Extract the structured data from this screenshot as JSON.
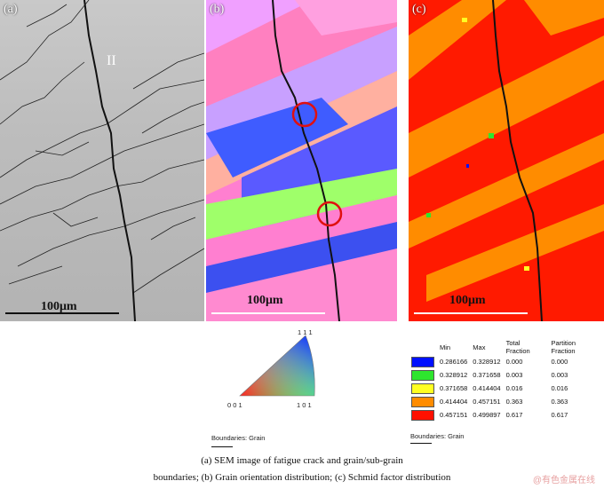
{
  "panels": {
    "a": {
      "label": "(a)",
      "grain_label": "II",
      "scale_text": "100μm"
    },
    "b": {
      "label": "(b)",
      "scale_text": "100μm"
    },
    "c": {
      "label": "(c)",
      "scale_text": "100μm"
    }
  },
  "ipf_legend": {
    "top": "1 1 1",
    "left": "0 0 1",
    "right": "1 0 1",
    "boundaries": "Boundaries: Grain"
  },
  "schmid_table": {
    "headers": [
      "",
      "Min",
      "Max",
      "Total Fraction",
      "Partition Fraction"
    ],
    "rows": [
      {
        "color": "#0010ff",
        "min": "0.286166",
        "max": "0.328912",
        "total": "0.000",
        "partition": "0.000"
      },
      {
        "color": "#2ee52e",
        "min": "0.328912",
        "max": "0.371658",
        "total": "0.003",
        "partition": "0.003"
      },
      {
        "color": "#ffff22",
        "min": "0.371658",
        "max": "0.414404",
        "total": "0.016",
        "partition": "0.016"
      },
      {
        "color": "#ff8c00",
        "min": "0.414404",
        "max": "0.457151",
        "total": "0.363",
        "partition": "0.363"
      },
      {
        "color": "#ff1000",
        "min": "0.457151",
        "max": "0.499897",
        "total": "0.617",
        "partition": "0.617"
      }
    ],
    "boundaries": "Boundaries: Grain"
  },
  "caption": {
    "line1": "(a) SEM image of fatigue crack and grain/sub-grain",
    "line2": "boundaries; (b) Grain orientation distribution; (c) Schmid factor distribution"
  },
  "watermark": "@有色金属在线"
}
